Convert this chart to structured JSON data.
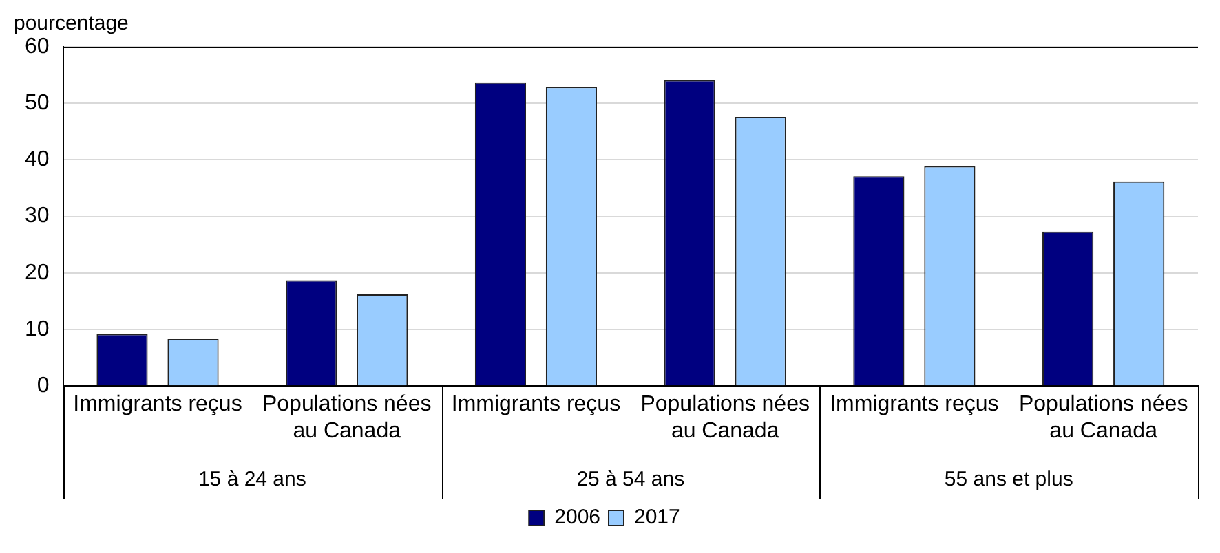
{
  "chart_data": {
    "type": "bar",
    "ylabel": "pourcentage",
    "categories": [
      "Immigrants reçus",
      "Populations nées au Canada",
      "Immigrants reçus",
      "Populations nées au Canada",
      "Immigrants reçus",
      "Populations nées au Canada"
    ],
    "annotations": [
      "15 à 24 ans",
      "25 à 54 ans",
      "55 ans et plus"
    ],
    "series": [
      {
        "name": "2006",
        "color": "#000080",
        "values": [
          9.2,
          18.7,
          53.7,
          54.1,
          37.1,
          27.3
        ]
      },
      {
        "name": "2017",
        "color": "#99ccff",
        "values": [
          8.3,
          16.2,
          52.9,
          47.6,
          38.9,
          36.2
        ]
      }
    ],
    "ylim": [
      0,
      60
    ],
    "yticks": [
      0,
      10,
      20,
      30,
      40,
      50,
      60
    ],
    "grid": "y",
    "legend": "bottom"
  }
}
